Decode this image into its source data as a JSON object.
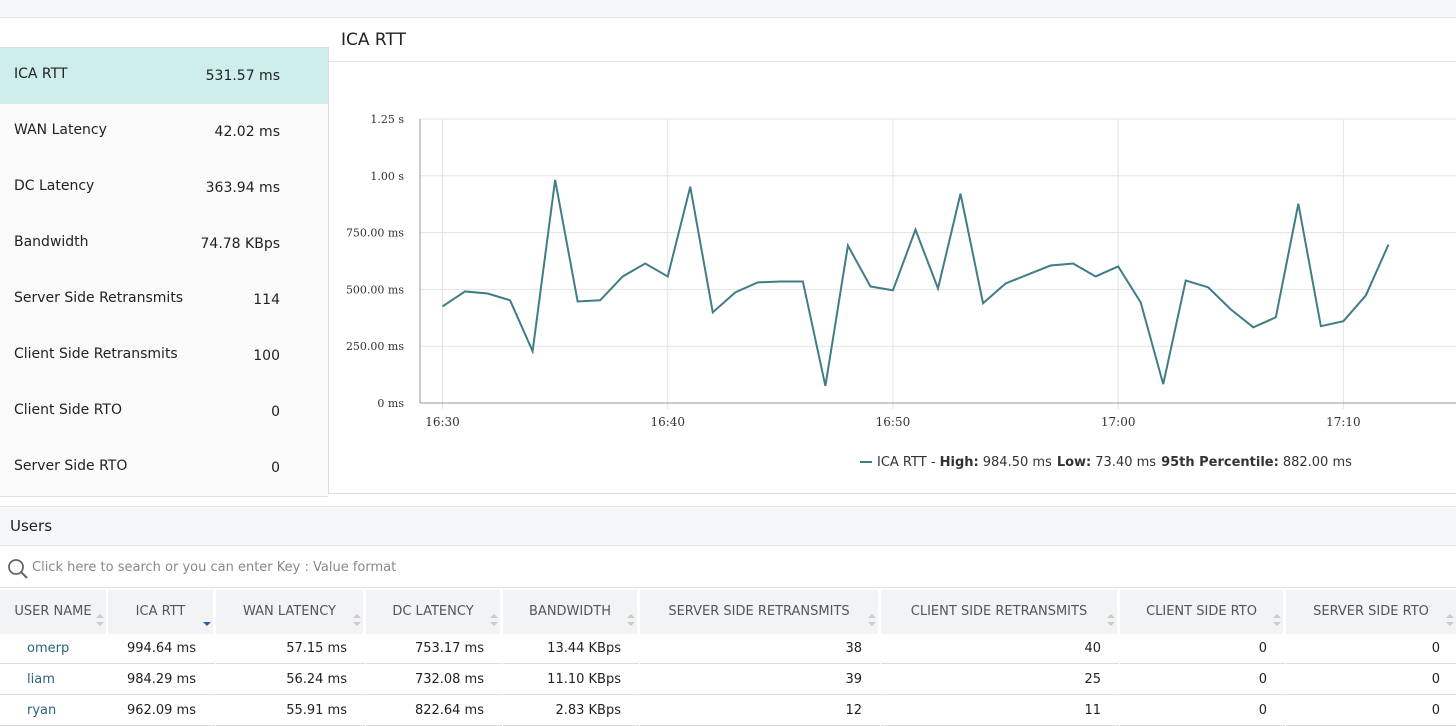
{
  "metrics": [
    {
      "name": "ICA RTT",
      "value": "531.57 ms"
    },
    {
      "name": "WAN Latency",
      "value": "42.02 ms"
    },
    {
      "name": "DC Latency",
      "value": "363.94 ms"
    },
    {
      "name": "Bandwidth",
      "value": "74.78 KBps"
    },
    {
      "name": "Server Side Retransmits",
      "value": "114"
    },
    {
      "name": "Client Side Retransmits",
      "value": "100"
    },
    {
      "name": "Client Side RTO",
      "value": "0"
    },
    {
      "name": "Server Side RTO",
      "value": "0"
    }
  ],
  "chart_data": {
    "type": "line",
    "title": "ICA RTT",
    "x": [
      "16:30",
      "16:31",
      "16:32",
      "16:33",
      "16:34",
      "16:35",
      "16:36",
      "16:37",
      "16:38",
      "16:39",
      "16:40",
      "16:41",
      "16:42",
      "16:43",
      "16:44",
      "16:45",
      "16:46",
      "16:47",
      "16:48",
      "16:49",
      "16:50",
      "16:51",
      "16:52",
      "16:53",
      "16:54",
      "16:55",
      "16:56",
      "16:57",
      "16:58",
      "16:59",
      "17:00",
      "17:01",
      "17:02",
      "17:03",
      "17:04",
      "17:05",
      "17:06",
      "17:07",
      "17:08",
      "17:09",
      "17:10",
      "17:11",
      "17:12"
    ],
    "series": [
      {
        "name": "ICA RTT",
        "color": "#3f7d88",
        "values": [
          425,
          491,
          482,
          452,
          228,
          982,
          447,
          452,
          557,
          614,
          557,
          952,
          399,
          487,
          531,
          535,
          535,
          75,
          693,
          513,
          496,
          763,
          504,
          921,
          439,
          526,
          566,
          605,
          614,
          557,
          601,
          443,
          83,
          539,
          509,
          412,
          333,
          377,
          877,
          338,
          360,
          474,
          697
        ]
      }
    ],
    "legend_stats": [
      {
        "label": "High:",
        "value": "984.50 ms"
      },
      {
        "label": "Low:",
        "value": "73.40 ms"
      },
      {
        "label": "95th Percentile:",
        "value": "882.00 ms"
      }
    ],
    "xlim": [
      "16:29",
      "17:15"
    ],
    "xticks": [
      "16:30",
      "16:40",
      "16:50",
      "17:00",
      "17:10"
    ],
    "ylim": [
      0,
      1250
    ],
    "yticks": [
      {
        "value": 0,
        "label": "0 ms"
      },
      {
        "value": 250,
        "label": "250.00 ms"
      },
      {
        "value": 500,
        "label": "500.00 ms"
      },
      {
        "value": 750,
        "label": "750.00 ms"
      },
      {
        "value": 1000,
        "label": "1.00 s"
      },
      {
        "value": 1250,
        "label": "1.25 s"
      }
    ],
    "grid": true
  },
  "users": {
    "title": "Users",
    "search_placeholder": "Click here to search or you can enter Key : Value format",
    "columns": [
      "USER NAME",
      "ICA RTT",
      "WAN LATENCY",
      "DC LATENCY",
      "BANDWIDTH",
      "SERVER SIDE RETRANSMITS",
      "CLIENT SIDE RETRANSMITS",
      "CLIENT SIDE RTO",
      "SERVER SIDE RTO"
    ],
    "rows": [
      [
        "omerp",
        "994.64 ms",
        "57.15 ms",
        "753.17 ms",
        "13.44 KBps",
        "38",
        "40",
        "0",
        "0"
      ],
      [
        "liam",
        "984.29 ms",
        "56.24 ms",
        "732.08 ms",
        "11.10 KBps",
        "39",
        "25",
        "0",
        "0"
      ],
      [
        "ryan",
        "962.09 ms",
        "55.91 ms",
        "822.64 ms",
        "2.83 KBps",
        "12",
        "11",
        "0",
        "0"
      ]
    ]
  }
}
